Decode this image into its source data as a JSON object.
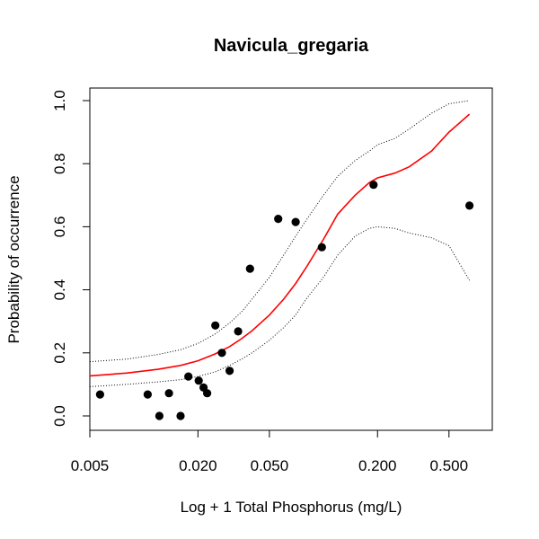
{
  "chart_data": {
    "type": "scatter",
    "title": "Navicula_gregaria",
    "xlabel": "Log + 1 Total Phosphorus (mg/L)",
    "ylabel": "Probability of occurrence",
    "x_scale": "log",
    "xlim": [
      0.005,
      0.75
    ],
    "ylim": [
      0.0,
      1.0
    ],
    "x_ticks": [
      0.005,
      0.02,
      0.05,
      0.2,
      0.5
    ],
    "x_tick_labels": [
      "0.005",
      "0.020",
      "0.050",
      "0.200",
      "0.500"
    ],
    "y_ticks": [
      0.0,
      0.2,
      0.4,
      0.6,
      0.8,
      1.0
    ],
    "y_tick_labels": [
      "0.0",
      "0.2",
      "0.4",
      "0.6",
      "0.8",
      "1.0"
    ],
    "grid": false,
    "legend": "none",
    "points": [
      {
        "x": 0.0057,
        "y": 0.068
      },
      {
        "x": 0.0105,
        "y": 0.068
      },
      {
        "x": 0.0122,
        "y": 0.0
      },
      {
        "x": 0.0138,
        "y": 0.072
      },
      {
        "x": 0.016,
        "y": 0.0
      },
      {
        "x": 0.0177,
        "y": 0.125
      },
      {
        "x": 0.0202,
        "y": 0.112
      },
      {
        "x": 0.0215,
        "y": 0.09
      },
      {
        "x": 0.0225,
        "y": 0.072
      },
      {
        "x": 0.025,
        "y": 0.287
      },
      {
        "x": 0.0272,
        "y": 0.2
      },
      {
        "x": 0.03,
        "y": 0.143
      },
      {
        "x": 0.0335,
        "y": 0.268
      },
      {
        "x": 0.039,
        "y": 0.467
      },
      {
        "x": 0.056,
        "y": 0.625
      },
      {
        "x": 0.07,
        "y": 0.615
      },
      {
        "x": 0.098,
        "y": 0.535
      },
      {
        "x": 0.19,
        "y": 0.733
      },
      {
        "x": 0.65,
        "y": 0.667
      }
    ],
    "series": [
      {
        "style": "fit",
        "color": "#ff0000",
        "dash": "solid",
        "x": [
          0.005,
          0.008,
          0.012,
          0.016,
          0.02,
          0.025,
          0.03,
          0.035,
          0.04,
          0.05,
          0.06,
          0.07,
          0.08,
          0.1,
          0.12,
          0.15,
          0.18,
          0.2,
          0.25,
          0.3,
          0.4,
          0.5,
          0.65
        ],
        "y": [
          0.127,
          0.136,
          0.148,
          0.16,
          0.175,
          0.197,
          0.22,
          0.245,
          0.27,
          0.32,
          0.37,
          0.42,
          0.47,
          0.56,
          0.64,
          0.7,
          0.74,
          0.755,
          0.77,
          0.79,
          0.84,
          0.9,
          0.957
        ]
      },
      {
        "style": "ci-upper",
        "color": "#000000",
        "dash": "dotted",
        "x": [
          0.005,
          0.008,
          0.012,
          0.016,
          0.02,
          0.025,
          0.03,
          0.035,
          0.04,
          0.05,
          0.06,
          0.07,
          0.08,
          0.1,
          0.12,
          0.15,
          0.18,
          0.2,
          0.25,
          0.3,
          0.4,
          0.5,
          0.65
        ],
        "y": [
          0.172,
          0.18,
          0.195,
          0.21,
          0.23,
          0.26,
          0.295,
          0.33,
          0.37,
          0.44,
          0.51,
          0.57,
          0.62,
          0.7,
          0.76,
          0.81,
          0.84,
          0.86,
          0.88,
          0.91,
          0.96,
          0.99,
          1.0
        ]
      },
      {
        "style": "ci-lower",
        "color": "#000000",
        "dash": "dotted",
        "x": [
          0.005,
          0.008,
          0.012,
          0.016,
          0.02,
          0.025,
          0.03,
          0.035,
          0.04,
          0.05,
          0.06,
          0.07,
          0.08,
          0.1,
          0.12,
          0.15,
          0.18,
          0.2,
          0.25,
          0.3,
          0.4,
          0.5,
          0.65
        ],
        "y": [
          0.093,
          0.1,
          0.108,
          0.115,
          0.125,
          0.14,
          0.16,
          0.18,
          0.2,
          0.24,
          0.28,
          0.32,
          0.37,
          0.44,
          0.51,
          0.57,
          0.595,
          0.6,
          0.595,
          0.58,
          0.565,
          0.54,
          0.43
        ]
      }
    ]
  }
}
